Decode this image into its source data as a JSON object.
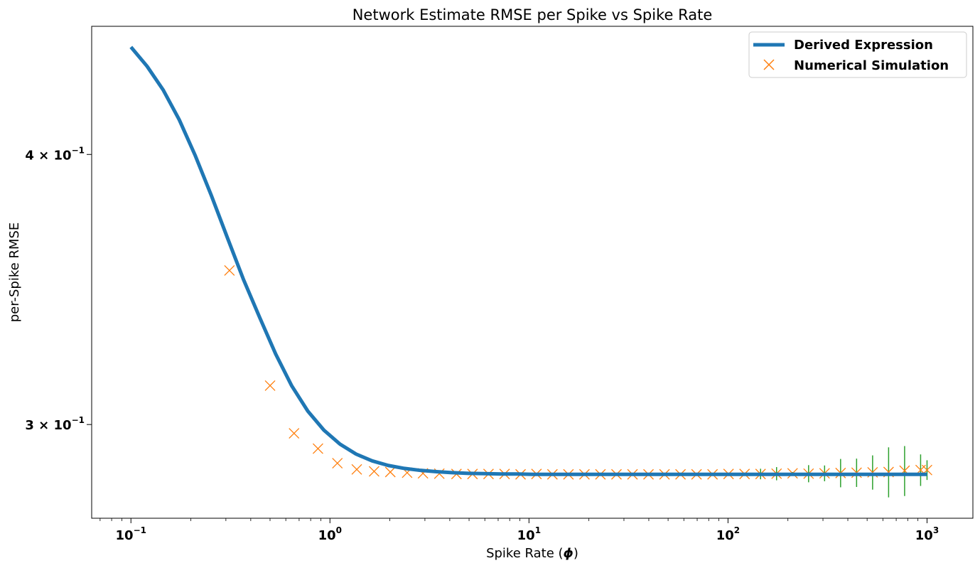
{
  "chart_data": {
    "type": "line",
    "title": "Network Estimate RMSE per Spike vs Spike Rate",
    "xlabel": "Spike Rate (",
    "xlabel_symbol": "ϕ",
    "xlabel_close": ")",
    "ylabel": "per-Spike RMSE",
    "xscale": "log",
    "yscale": "log",
    "xlim": [
      0.0635,
      1700
    ],
    "ylim": [
      0.2715,
      0.4585
    ],
    "grid": false,
    "legend_position": "top-right",
    "x_ticks": [
      {
        "value": 0.1,
        "base": "10",
        "exp": "−1"
      },
      {
        "value": 1,
        "base": "10",
        "exp": "0"
      },
      {
        "value": 10,
        "base": "10",
        "exp": "1"
      },
      {
        "value": 100,
        "base": "10",
        "exp": "2"
      },
      {
        "value": 1000,
        "base": "10",
        "exp": "3"
      }
    ],
    "y_ticks": [
      {
        "value": 0.3,
        "mant": "3 × 10",
        "exp": "−1"
      },
      {
        "value": 0.4,
        "mant": "4 × 10",
        "exp": "−1"
      }
    ],
    "series": [
      {
        "name": "Derived Expression",
        "kind": "line",
        "color": "#1f77b4",
        "x": [
          0.1,
          0.1205,
          0.1451,
          0.1748,
          0.2105,
          0.2535,
          0.3054,
          0.3678,
          0.4431,
          0.5337,
          0.6428,
          0.7743,
          0.9326,
          1.1233,
          1.353,
          1.6298,
          1.963,
          2.3645,
          2.848,
          3.4305,
          4.132,
          4.977,
          5.995,
          7.221,
          8.697,
          10.476,
          12.618,
          15.199,
          18.307,
          22.051,
          26.561,
          31.993,
          38.535,
          46.416,
          55.908,
          67.342,
          81.113,
          97.701,
          117.68,
          141.75,
          170.74,
          205.65,
          247.71,
          298.36,
          359.38,
          432.88,
          521.4,
          628.03,
          756.46,
          911.16,
          1000
        ],
        "y": [
          0.4485,
          0.4394,
          0.4285,
          0.4151,
          0.3995,
          0.3829,
          0.366,
          0.3501,
          0.3363,
          0.3234,
          0.3126,
          0.3043,
          0.2982,
          0.2938,
          0.2907,
          0.2886,
          0.2872,
          0.2863,
          0.2857,
          0.2853,
          0.285,
          0.2848,
          0.2847,
          0.2846,
          0.2846,
          0.2845,
          0.2845,
          0.2845,
          0.2845,
          0.2845,
          0.2845,
          0.2845,
          0.2845,
          0.2845,
          0.2845,
          0.2845,
          0.2845,
          0.2845,
          0.2845,
          0.2845,
          0.2845,
          0.2845,
          0.2845,
          0.2845,
          0.2845,
          0.2845,
          0.2845,
          0.2845,
          0.2845,
          0.2845,
          0.2845
        ]
      },
      {
        "name": "Numerical Simulation",
        "kind": "scatter",
        "marker": "x",
        "color": "#ff7f0e",
        "error_color": "#2ca02c",
        "x": [
          0.3126,
          0.5003,
          0.66,
          0.8706,
          1.0896,
          1.3638,
          1.6669,
          2.0101,
          2.4422,
          2.9342,
          3.5443,
          4.3217,
          5.2024,
          6.2619,
          7.5406,
          9.0741,
          10.906,
          13.117,
          15.787,
          19.002,
          22.862,
          27.519,
          33.128,
          39.857,
          47.975,
          57.729,
          69.485,
          83.616,
          100.64,
          121.11,
          145.76,
          175.4,
          211.11,
          254.04,
          305.68,
          367.85,
          442.68,
          532.72,
          641.1,
          771.49,
          928.43,
          1000
        ],
        "y": [
          0.3535,
          0.3127,
          0.2972,
          0.2924,
          0.2879,
          0.286,
          0.2854,
          0.2852,
          0.285,
          0.2848,
          0.2847,
          0.2846,
          0.2846,
          0.2846,
          0.2846,
          0.2845,
          0.2846,
          0.2845,
          0.2845,
          0.2845,
          0.2845,
          0.2845,
          0.2845,
          0.2845,
          0.2845,
          0.2845,
          0.2845,
          0.2845,
          0.2846,
          0.2846,
          0.2846,
          0.2847,
          0.2848,
          0.2847,
          0.2848,
          0.2849,
          0.285,
          0.2851,
          0.2852,
          0.2856,
          0.2858,
          0.2858
        ],
        "err": [
          0,
          0,
          0,
          0,
          0,
          0,
          0,
          0,
          0,
          0,
          0,
          0,
          0,
          0,
          0,
          0,
          0,
          0,
          0,
          0,
          0,
          0,
          0,
          0,
          0,
          0,
          0,
          0,
          0.0003,
          0.0004,
          0.0016,
          0.002,
          0.0004,
          0.0026,
          0.0024,
          0.0043,
          0.0043,
          0.0052,
          0.0076,
          0.0076,
          0.0048,
          0.003
        ]
      }
    ]
  }
}
